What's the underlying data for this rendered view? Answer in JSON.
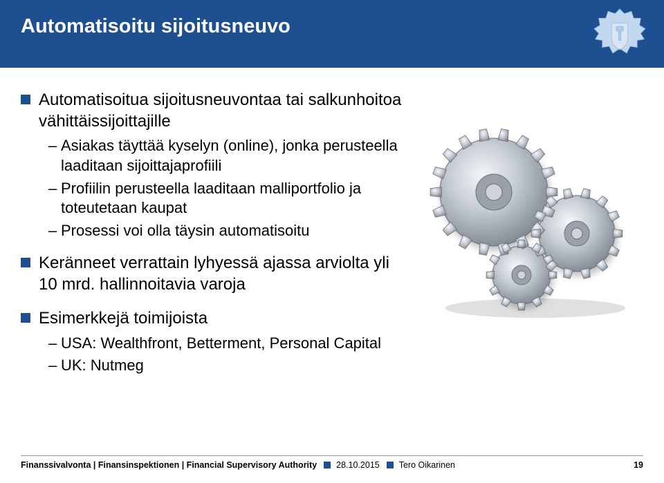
{
  "colors": {
    "header_bg": "#1d4f91",
    "accent": "#1d4f91",
    "white": "#ffffff",
    "black": "#000000"
  },
  "header": {
    "title": "Automatisoitu sijoitusneuvo"
  },
  "bullets": [
    {
      "text": "Automatisoitua sijoitusneuvontaa tai salkunhoitoa vähittäissijoittajille",
      "sub": [
        "Asiakas täyttää kyselyn (online), jonka perusteella laaditaan sijoittajaprofiili",
        "Profiilin perusteella laaditaan malliportfolio ja toteutetaan kaupat",
        "Prosessi voi olla täysin automatisoitu"
      ]
    },
    {
      "text": "Keränneet verrattain lyhyessä ajassa arviolta yli 10 mrd. hallinnoitavia varoja",
      "sub": []
    },
    {
      "text": "Esimerkkejä toimijoista",
      "sub": [
        "USA: Wealthfront, Betterment, Personal Capital",
        "UK: Nutmeg"
      ]
    }
  ],
  "footer": {
    "org": "Finanssivalvonta | Finansinspektionen | Financial Supervisory Authority",
    "date": "28.10.2015",
    "author": "Tero Oikarinen",
    "page": "19"
  },
  "image": {
    "name": "gears-illustration"
  }
}
